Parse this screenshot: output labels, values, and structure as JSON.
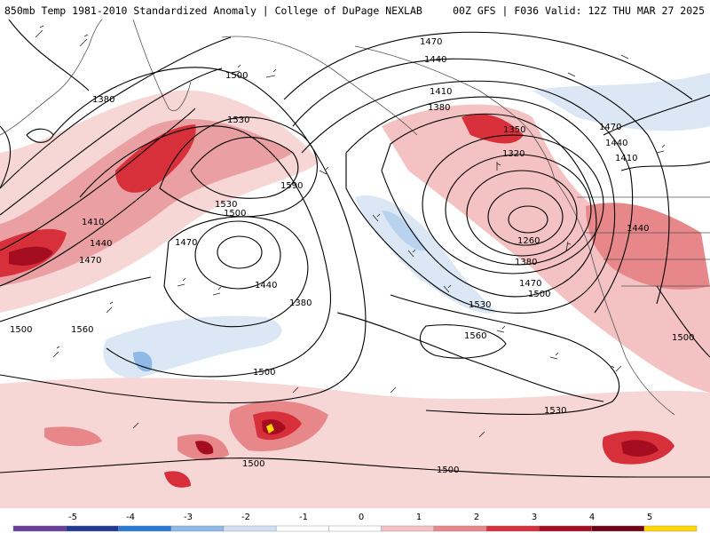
{
  "header": {
    "left_title": "850mb Temp 1981-2010 Standardized Anomaly | College of DuPage NEXLAB",
    "right_title": "00Z GFS | F036 Valid: 12Z THU MAR 27 2025"
  },
  "contour_labels": [
    "1470",
    "1440",
    "1410",
    "1380",
    "1350",
    "1320",
    "1260",
    "1380",
    "1470",
    "1500",
    "1530",
    "1560",
    "1590",
    "1530",
    "1500",
    "1470",
    "1440",
    "1410",
    "1380",
    "1440",
    "1470",
    "1500",
    "1530",
    "1500",
    "1500",
    "1500",
    "1530",
    "1560",
    "1380",
    "1470",
    "1440",
    "1410",
    "1440",
    "1500",
    "1500"
  ],
  "legend": {
    "ticks": [
      "-5",
      "-4",
      "-3",
      "-2",
      "-1",
      "0",
      "1",
      "2",
      "3",
      "4",
      "5"
    ],
    "colors": [
      "#6a3d9a",
      "#1f3a93",
      "#2b7bd6",
      "#8fb9e6",
      "#cfe0f3",
      "#ffffff",
      "#ffffff",
      "#f4c2c2",
      "#e8878a",
      "#d7303a",
      "#a30d1f",
      "#700012",
      "#ffd700"
    ]
  }
}
